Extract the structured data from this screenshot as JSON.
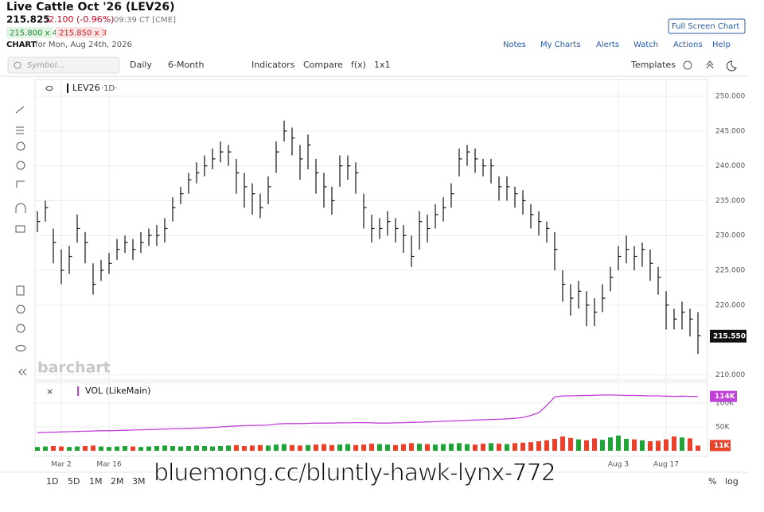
{
  "header": {
    "title": "Live Cattle Oct '26 (LEV26)",
    "last": "215.825",
    "change": "-2.100 (-0.96%)",
    "time": "09:39 CT [CME]",
    "bid": "215.800 x 4",
    "ask": "215.850 x 3",
    "chart_label": "CHART",
    "date": "for Mon, Aug 24th, 2026",
    "full_screen": "Full Screen Chart",
    "links": [
      "Notes",
      "My Charts",
      "Alerts",
      "Watch",
      "Actions",
      "Help"
    ]
  },
  "toolbar": {
    "symbol": "Symbol...",
    "interval": "Daily",
    "range": "6-Month",
    "indicators": "Indicators",
    "compare": "Compare",
    "fx": "f(x)",
    "layout": "1x1",
    "templates": "Templates"
  },
  "chart_data": {
    "type": "ohlc",
    "legend": "LEV26",
    "interval": "·1D·",
    "logo": "barchart",
    "color": "#111111",
    "categories": [
      null,
      null,
      null,
      "Mar 2",
      null,
      null,
      null,
      null,
      null,
      "Mar 16",
      null,
      null,
      null,
      null,
      null,
      null,
      null,
      null,
      null,
      null,
      null,
      null,
      null,
      null,
      null,
      null,
      null,
      null,
      null,
      null,
      null,
      null,
      null,
      null,
      null,
      null,
      null,
      null,
      null,
      null,
      null,
      null,
      null,
      null,
      null,
      null,
      null,
      null,
      null,
      null,
      null,
      null,
      null,
      null,
      null,
      null,
      null,
      null,
      null,
      null,
      null,
      null,
      null,
      null,
      null,
      null,
      null,
      null,
      null,
      null,
      null,
      null,
      null,
      "Aug 3",
      null,
      null,
      null,
      null,
      null,
      "Aug 17",
      null,
      null,
      null,
      null
    ],
    "high": [
      233.5,
      235,
      231,
      228,
      228.5,
      233,
      230.5,
      226,
      226.5,
      227.5,
      229.5,
      230,
      229.5,
      230.5,
      231,
      231.5,
      232.5,
      235.5,
      237,
      239,
      240.5,
      241.5,
      242.5,
      243.5,
      243,
      241,
      239,
      237.5,
      236,
      238.5,
      243.5,
      246.5,
      245.5,
      243,
      244.5,
      241,
      239,
      237,
      241.5,
      241.5,
      240.5,
      236,
      233,
      232.5,
      233.5,
      232.5,
      231.5,
      230,
      233.5,
      233,
      234.5,
      235.5,
      237.5,
      242.5,
      243,
      242.5,
      241,
      241,
      238.5,
      238.5,
      237,
      236.5,
      234.5,
      233.5,
      232,
      230.5,
      225,
      223,
      223.5,
      222,
      221,
      223,
      225.5,
      228.5,
      230,
      228.5,
      229,
      228,
      225.5,
      222,
      219.5,
      220.5,
      219.5,
      219
    ],
    "low": [
      230.5,
      232,
      226,
      223,
      224.5,
      229,
      226,
      221.5,
      223.5,
      224.5,
      226.5,
      227.5,
      226.5,
      227.5,
      228.5,
      228.5,
      229,
      232,
      234.5,
      236,
      237.5,
      238.5,
      239.5,
      240.5,
      240,
      236,
      234,
      233,
      232.5,
      234.5,
      239,
      243.5,
      241.5,
      238,
      239.5,
      236,
      234,
      233,
      237,
      238,
      236,
      231,
      229,
      229.5,
      230,
      229,
      227.5,
      225.5,
      228,
      229,
      231,
      232,
      234,
      238.5,
      240,
      239,
      238.5,
      237.5,
      235,
      235,
      234,
      233,
      231,
      230,
      229,
      225,
      220.5,
      218.5,
      219.5,
      217,
      217,
      219,
      222,
      225,
      226,
      225,
      225.5,
      223.5,
      221.5,
      216.5,
      216.5,
      216.5,
      215.5,
      213
    ],
    "close": [
      232,
      234,
      229,
      225,
      227,
      231,
      229,
      223,
      225,
      226,
      228,
      229,
      228,
      229,
      230,
      230,
      231,
      234,
      236,
      238,
      239,
      240,
      241,
      242,
      242,
      239,
      237,
      236,
      234,
      237,
      242,
      245,
      244,
      241,
      243,
      239,
      237,
      235,
      240,
      240,
      239,
      234,
      231,
      231,
      232,
      231,
      230,
      227,
      232,
      231,
      233,
      234,
      236,
      241,
      242,
      241,
      240,
      240,
      237,
      237,
      236,
      235,
      233,
      232,
      231,
      228,
      223,
      221,
      222,
      220,
      219,
      221,
      224,
      227,
      228,
      227,
      228,
      226,
      224,
      220,
      218,
      219,
      218,
      215.6
    ],
    "ylim": [
      209.25,
      252.4
    ],
    "yticks": [
      {
        "value": 210,
        "label": "210.000"
      },
      {
        "value": 220,
        "label": "220.000"
      },
      {
        "value": 225,
        "label": "225.000"
      },
      {
        "value": 230,
        "label": "230.000"
      },
      {
        "value": 235,
        "label": "235.000"
      },
      {
        "value": 240,
        "label": "240.000"
      },
      {
        "value": 245,
        "label": "245.000"
      },
      {
        "value": 250,
        "label": "250.000"
      }
    ],
    "last_price": {
      "value": 215.55,
      "label": "215.550"
    },
    "grid": true,
    "volume": {
      "title": "VOL (LikeMain)",
      "up_color": "#22a33a",
      "down_color": "#e8412c",
      "ylim": [
        0,
        150
      ],
      "yticks": [
        {
          "value": 50,
          "label": "50K"
        },
        {
          "value": 100,
          "label": "100K"
        }
      ],
      "values": [
        8,
        9,
        10,
        9,
        8,
        9,
        10,
        11,
        9,
        8,
        9,
        10,
        9,
        8,
        9,
        10,
        11,
        10,
        9,
        10,
        11,
        10,
        9,
        10,
        11,
        12,
        10,
        11,
        12,
        11,
        13,
        14,
        12,
        11,
        12,
        13,
        14,
        12,
        13,
        14,
        12,
        13,
        15,
        14,
        13,
        12,
        14,
        16,
        15,
        14,
        13,
        14,
        15,
        16,
        14,
        13,
        15,
        16,
        15,
        14,
        16,
        17,
        18,
        20,
        22,
        25,
        30,
        27,
        24,
        22,
        26,
        23,
        28,
        32,
        25,
        24,
        22,
        20,
        21,
        24,
        30,
        28,
        26,
        11
      ],
      "last_value": {
        "value": 11,
        "label": "11K"
      },
      "open_interest": {
        "color": "#c040d8",
        "values": [
          38,
          38.5,
          39,
          39.5,
          40,
          40.5,
          41,
          41.5,
          42,
          42,
          42.5,
          43,
          43.5,
          44,
          44.5,
          45,
          45.5,
          46,
          46.5,
          47,
          47.5,
          48,
          49,
          50,
          51,
          52,
          52.5,
          53,
          53.5,
          54,
          56,
          57,
          57,
          57,
          57.5,
          58,
          58,
          58,
          58.5,
          58.5,
          59,
          59,
          58.5,
          58,
          58,
          58.5,
          59,
          59.5,
          60,
          60.5,
          61,
          62,
          62.5,
          63,
          64,
          64.5,
          65,
          65.5,
          66,
          67,
          68,
          70,
          74,
          80,
          95,
          113,
          115,
          115,
          115.5,
          116,
          116,
          117,
          117,
          116.5,
          116,
          116,
          115.5,
          115,
          115,
          114.5,
          114,
          114.5,
          114,
          114
        ],
        "last_value": {
          "value": 114,
          "label": "114K"
        }
      }
    }
  },
  "bottom_bar": {
    "ranges": [
      "1D",
      "5D",
      "1M",
      "2M",
      "3M"
    ],
    "percent": "%",
    "log": "log"
  },
  "watermark": "bluemong.cc/bluntly-hawk-lynx-772"
}
